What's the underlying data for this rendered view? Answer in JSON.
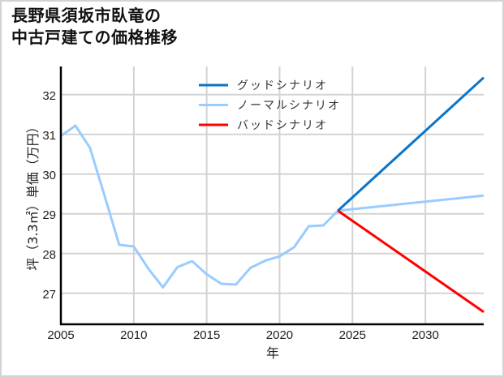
{
  "title": {
    "line1": "長野県須坂市臥竜の",
    "line2": "中古戸建ての価格推移"
  },
  "colors": {
    "good": "#0a74c9",
    "normal": "#99ccff",
    "bad": "#ff0000",
    "grid": "#d3d3d3",
    "axis": "#000000"
  },
  "chart_data": {
    "type": "line",
    "title": "長野県須坂市臥竜の中古戸建ての価格推移",
    "xlabel": "年",
    "ylabel": "坪（3.3㎡）単価（万円）",
    "xlim": [
      2005,
      2034
    ],
    "ylim": [
      26.22,
      32.71
    ],
    "xticks": [
      2005,
      2010,
      2015,
      2020,
      2025,
      2030
    ],
    "yticks": [
      27,
      28,
      29,
      30,
      31,
      32
    ],
    "grid": true,
    "legend_position": "upper center",
    "series": [
      {
        "name": "ノーマルシナリオ",
        "key": "normal",
        "x": [
          2005,
          2006,
          2007,
          2008,
          2009,
          2010,
          2011,
          2012,
          2013,
          2014,
          2015,
          2016,
          2017,
          2018,
          2019,
          2020,
          2021,
          2022,
          2023,
          2024,
          2034
        ],
        "values": [
          30.96,
          31.22,
          30.66,
          29.45,
          28.22,
          28.18,
          27.62,
          27.15,
          27.66,
          27.81,
          27.48,
          27.24,
          27.22,
          27.64,
          27.82,
          27.93,
          28.16,
          28.69,
          28.71,
          29.08,
          29.46
        ]
      },
      {
        "name": "グッドシナリオ",
        "key": "good",
        "x": [
          2024,
          2034
        ],
        "values": [
          29.08,
          32.43
        ]
      },
      {
        "name": "バッドシナリオ",
        "key": "bad",
        "x": [
          2024,
          2034
        ],
        "values": [
          29.08,
          26.53
        ]
      }
    ],
    "legend": [
      "グッドシナリオ",
      "ノーマルシナリオ",
      "バッドシナリオ"
    ]
  }
}
